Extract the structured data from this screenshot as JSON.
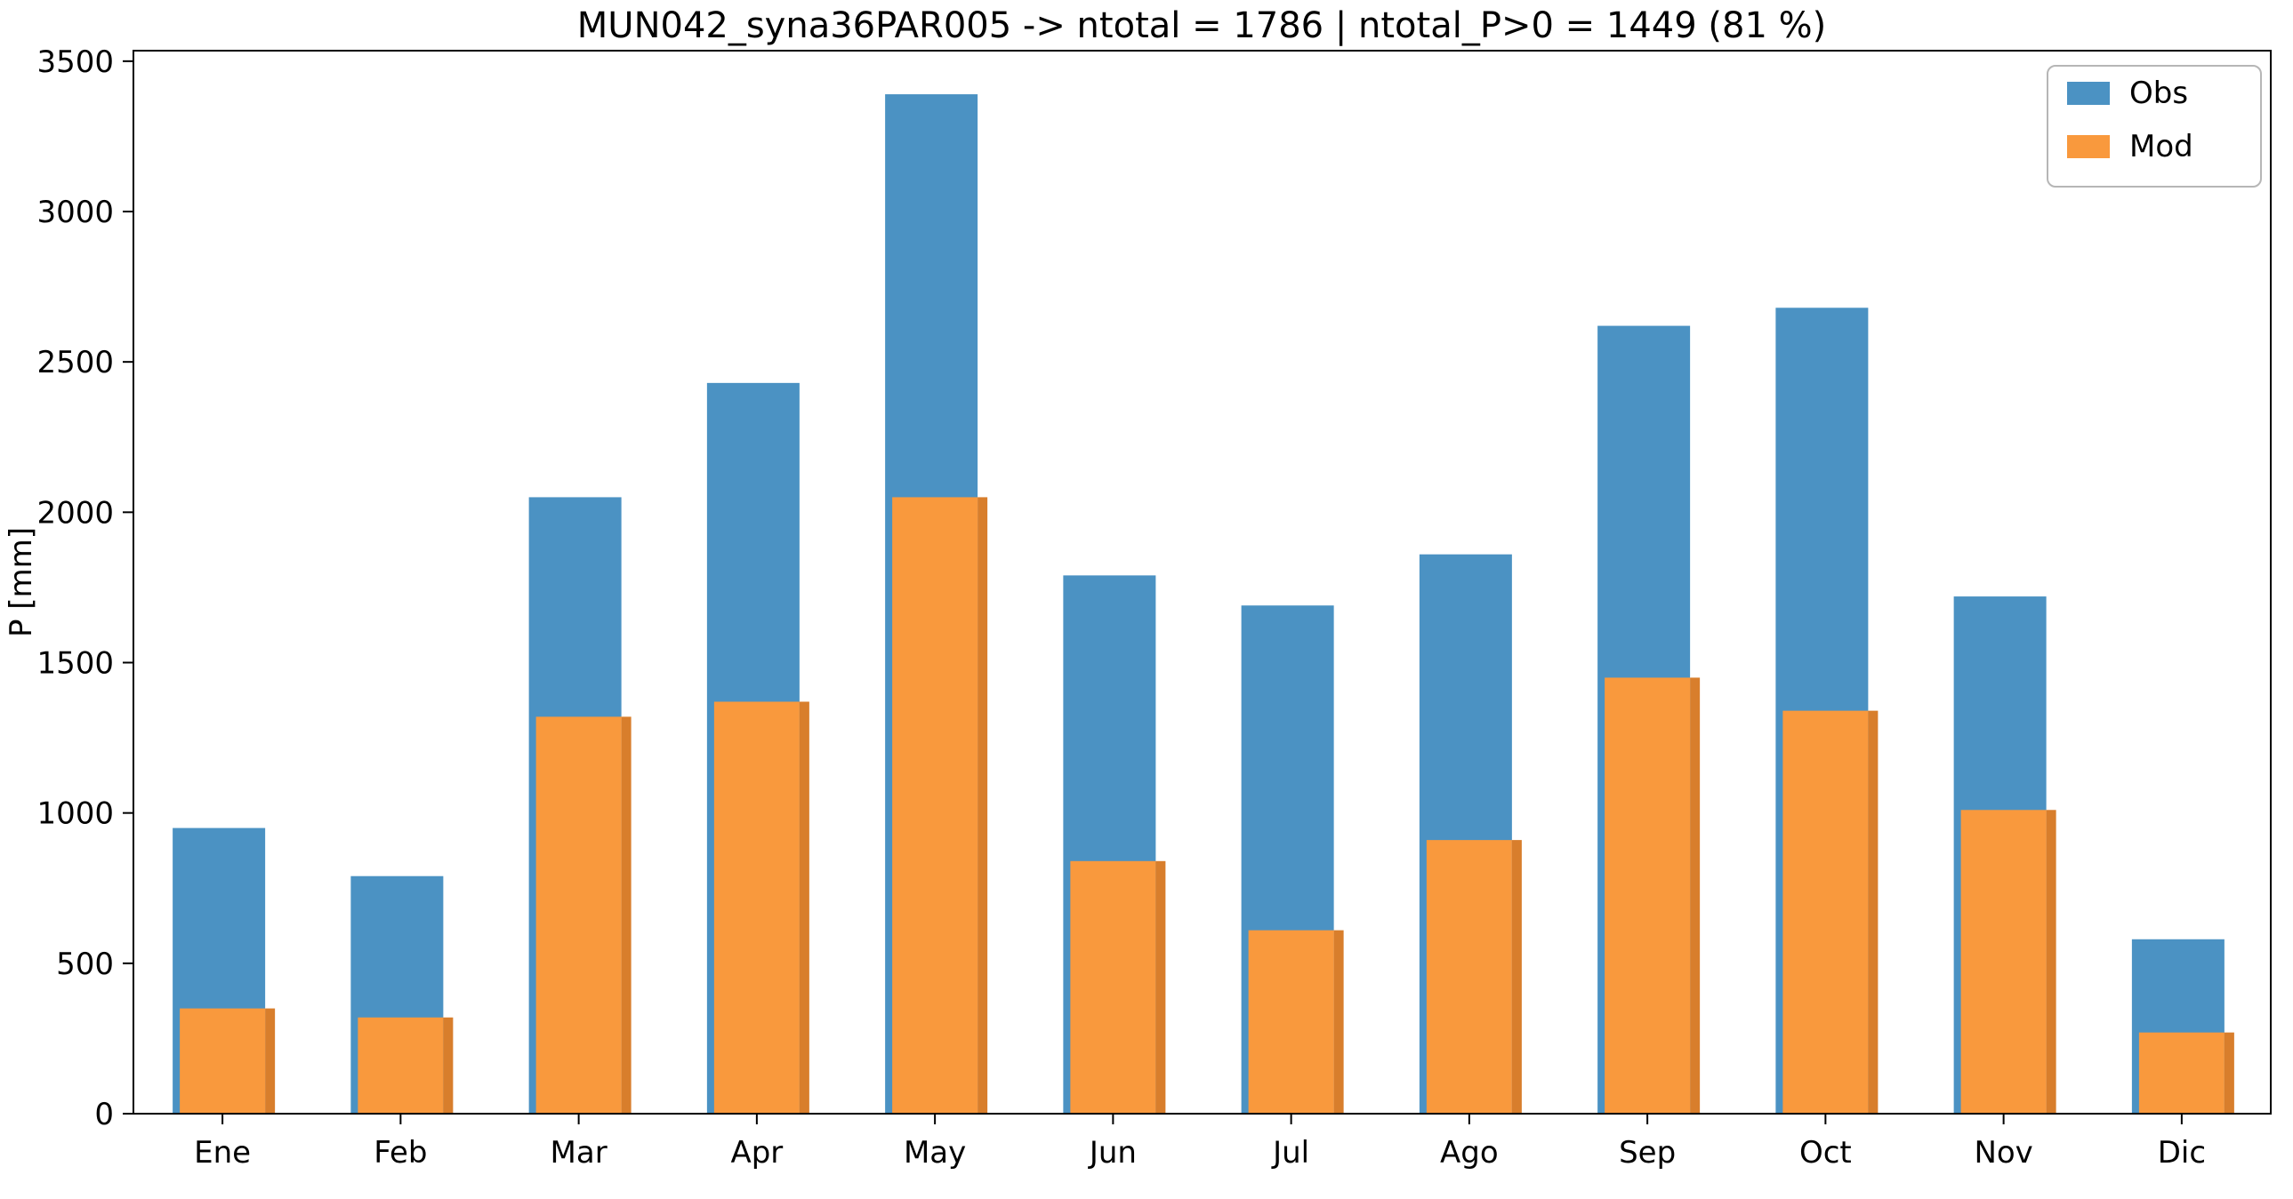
{
  "chart_data": {
    "type": "bar",
    "title": "MUN042_syna36PAR005 -> ntotal = 1786 | ntotal_P>0 = 1449 (81 %)",
    "ylabel": "P [mm]",
    "xlabel": "",
    "categories": [
      "Ene",
      "Feb",
      "Mar",
      "Apr",
      "May",
      "Jun",
      "Jul",
      "Ago",
      "Sep",
      "Oct",
      "Nov",
      "Dic"
    ],
    "series": [
      {
        "name": "Obs",
        "color": "#4B92C3",
        "values": [
          950,
          790,
          2050,
          2430,
          3390,
          1790,
          1690,
          1860,
          2620,
          2680,
          1720,
          580
        ]
      },
      {
        "name": "Mod",
        "color": "#F9993D",
        "edge_color": "#D87E2C",
        "values": [
          350,
          320,
          1320,
          1370,
          2050,
          840,
          610,
          910,
          1450,
          1340,
          1010,
          270
        ]
      }
    ],
    "ylim": [
      0,
      3500
    ],
    "yticks": [
      0,
      500,
      1000,
      1500,
      2000,
      2500,
      3000,
      3500
    ],
    "legend_position": "upper right",
    "grid": false,
    "spine_color": "#000000",
    "legend_border_color": "#b6b6b6"
  }
}
